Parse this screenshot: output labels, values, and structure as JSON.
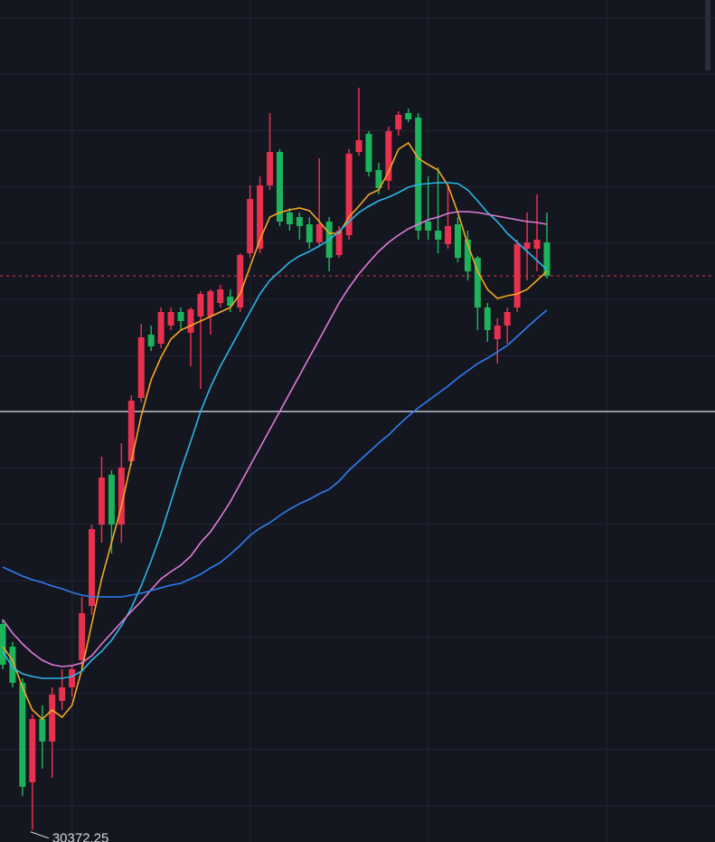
{
  "chart_data": {
    "type": "candlestick",
    "ylim": [
      30240,
      39550
    ],
    "up_color": "#e8304f",
    "down_color": "#1db25c",
    "open": [
      32650,
      32400,
      32000,
      30900,
      31600,
      31350,
      31800,
      31950,
      32250,
      32850,
      33750,
      34300,
      33750,
      34450,
      35150,
      35850,
      35750,
      35950,
      36100,
      35870,
      36050,
      36050,
      36200,
      36270,
      36150,
      36750,
      36800,
      37500,
      37870,
      37200,
      37150,
      37070,
      36870,
      37100,
      36730,
      36950,
      37870,
      38070,
      37670,
      37550,
      38120,
      38300,
      38250,
      37100,
      37000,
      36850,
      37070,
      36900,
      36700,
      36150,
      35800,
      35950,
      36150,
      36800,
      36800,
      36870
    ],
    "high": [
      32700,
      32450,
      32050,
      31650,
      31750,
      31950,
      32150,
      32200,
      32950,
      33750,
      34500,
      34350,
      34650,
      35180,
      35970,
      35950,
      36150,
      36150,
      36150,
      36150,
      36330,
      36350,
      36400,
      36350,
      36750,
      37500,
      37600,
      38300,
      37900,
      37250,
      37200,
      37150,
      37800,
      37150,
      37050,
      37900,
      38580,
      38100,
      37750,
      38150,
      38320,
      38350,
      38300,
      37600,
      37700,
      37500,
      37150,
      37000,
      36720,
      36200,
      36030,
      36150,
      36900,
      37200,
      37400,
      37200
    ],
    "low": [
      32150,
      31950,
      30750,
      30372.25,
      31050,
      30950,
      31700,
      31850,
      32150,
      32750,
      33550,
      33430,
      33550,
      34400,
      35100,
      35670,
      35700,
      35900,
      35900,
      35500,
      35250,
      35850,
      36150,
      36100,
      36100,
      36700,
      36750,
      37450,
      37050,
      37000,
      36900,
      36800,
      36830,
      36550,
      36700,
      36900,
      37830,
      37600,
      37400,
      37450,
      38050,
      38200,
      36900,
      36900,
      36750,
      36800,
      36650,
      36450,
      35900,
      35770,
      35530,
      35750,
      36100,
      36450,
      36550,
      36470
    ],
    "close": [
      32200,
      32000,
      30850,
      31600,
      31350,
      31870,
      31950,
      32150,
      32770,
      33700,
      34270,
      33750,
      34380,
      35120,
      35820,
      35720,
      36100,
      36100,
      36000,
      36130,
      36300,
      36330,
      36350,
      36170,
      36730,
      37350,
      37500,
      37870,
      37100,
      37070,
      37050,
      36870,
      37070,
      36700,
      37000,
      37850,
      38000,
      37650,
      37470,
      38100,
      38280,
      38230,
      37000,
      37000,
      36900,
      37050,
      36700,
      36550,
      36150,
      35900,
      35950,
      36100,
      36850,
      36870,
      36900,
      36500
    ],
    "series": [
      {
        "color": "#f5a623",
        "values": [
          32400,
          32250,
          31950,
          31700,
          31600,
          31700,
          31620,
          31750,
          32150,
          32650,
          33150,
          33550,
          33950,
          34450,
          34950,
          35350,
          35600,
          35800,
          35900,
          35950,
          36000,
          36050,
          36100,
          36150,
          36300,
          36600,
          36900,
          37150,
          37200,
          37230,
          37250,
          37220,
          37100,
          36970,
          36970,
          37150,
          37270,
          37400,
          37450,
          37650,
          37900,
          37970,
          37800,
          37730,
          37670,
          37500,
          37200,
          36850,
          36550,
          36350,
          36250,
          36280,
          36300,
          36350,
          36450,
          36550
        ]
      },
      {
        "color": "#29b6e8",
        "values": [
          32350,
          32170,
          32100,
          32070,
          32050,
          32050,
          32050,
          32070,
          32130,
          32250,
          32350,
          32470,
          32630,
          32830,
          33070,
          33350,
          33650,
          34000,
          34350,
          34670,
          35000,
          35270,
          35500,
          35700,
          35900,
          36100,
          36300,
          36450,
          36550,
          36650,
          36720,
          36770,
          36830,
          36900,
          36990,
          37100,
          37200,
          37270,
          37330,
          37370,
          37420,
          37480,
          37510,
          37520,
          37530,
          37530,
          37520,
          37450,
          37330,
          37200,
          37100,
          36970,
          36870,
          36770,
          36670,
          36570
        ]
      },
      {
        "color": "#e07ad8",
        "values": [
          32700,
          32550,
          32430,
          32330,
          32250,
          32200,
          32180,
          32190,
          32220,
          32300,
          32430,
          32550,
          32670,
          32790,
          32900,
          33030,
          33150,
          33230,
          33300,
          33400,
          33550,
          33670,
          33830,
          34000,
          34200,
          34400,
          34600,
          34800,
          35000,
          35200,
          35400,
          35600,
          35800,
          36000,
          36200,
          36370,
          36520,
          36650,
          36770,
          36870,
          36950,
          37020,
          37070,
          37120,
          37150,
          37190,
          37210,
          37210,
          37200,
          37180,
          37160,
          37140,
          37120,
          37100,
          37090,
          37070
        ]
      },
      {
        "color": "#2f7df0",
        "values": [
          33280,
          33230,
          33180,
          33140,
          33110,
          33070,
          33040,
          33000,
          32970,
          32950,
          32950,
          32950,
          32950,
          32970,
          32990,
          33020,
          33050,
          33080,
          33100,
          33150,
          33200,
          33270,
          33330,
          33420,
          33520,
          33630,
          33710,
          33770,
          33850,
          33920,
          33980,
          34030,
          34090,
          34140,
          34230,
          34350,
          34450,
          34550,
          34650,
          34740,
          34850,
          34950,
          35040,
          35120,
          35200,
          35280,
          35370,
          35450,
          35530,
          35590,
          35660,
          35730,
          35830,
          35930,
          36030,
          36120
        ]
      }
    ],
    "level_line": 35000,
    "price_line": 36500,
    "low_label": "30372.25"
  }
}
